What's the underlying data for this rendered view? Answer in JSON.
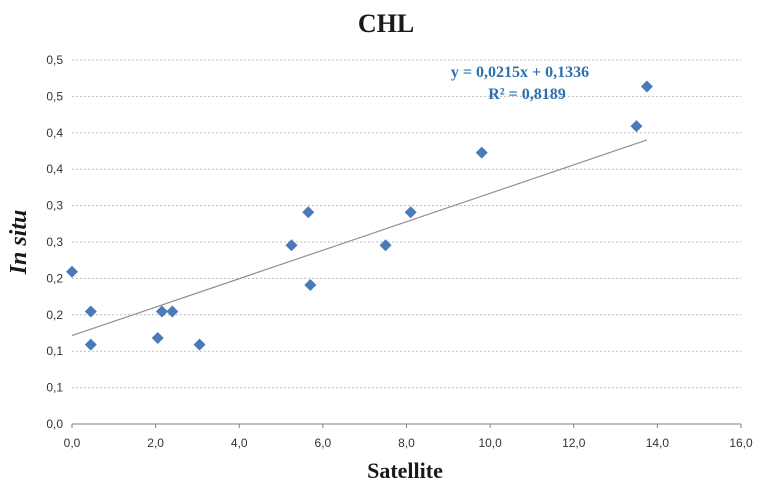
{
  "chart_data": {
    "type": "scatter",
    "title": "CHL",
    "xlabel": "Satellite",
    "ylabel": "In situ",
    "xlim": [
      0,
      16
    ],
    "ylim": [
      0,
      0.55
    ],
    "x_tick_labels": [
      "0,0",
      "2,0",
      "4,0",
      "6,0",
      "8,0",
      "10,0",
      "12,0",
      "14,0",
      "16,0"
    ],
    "y_tick_labels": [
      "0,0",
      "0,1",
      "0,1",
      "0,2",
      "0,2",
      "0,3",
      "0,3",
      "0,4",
      "0,4",
      "0,5",
      "0,5"
    ],
    "grid": true,
    "marker_color": "#4a7ab8",
    "trendline_color": "#909090",
    "equation_color": "#2e6fad",
    "series": [
      {
        "x": [
          0.0,
          0.45,
          0.45,
          2.05,
          2.15,
          2.4,
          3.05,
          5.25,
          5.65,
          5.7,
          7.5,
          8.1,
          9.8,
          13.5,
          13.75
        ],
        "y": [
          0.23,
          0.17,
          0.12,
          0.13,
          0.17,
          0.17,
          0.12,
          0.27,
          0.32,
          0.21,
          0.27,
          0.32,
          0.41,
          0.45,
          0.51
        ]
      }
    ],
    "trendline": {
      "slope": 0.0215,
      "intercept": 0.1336,
      "equation_label": "y = 0,0215x + 0,1336",
      "r2_label": "R² = 0,8189"
    }
  }
}
